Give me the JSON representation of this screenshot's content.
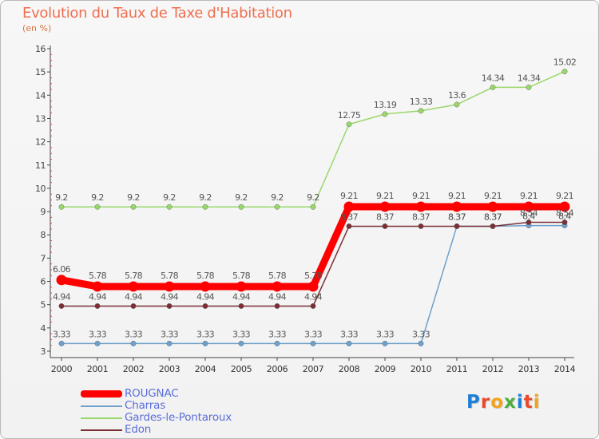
{
  "header": {
    "title": "Evolution du Taux de Taxe d'Habitation",
    "unit": "(en %)"
  },
  "logo": {
    "text": "Proxiti",
    "letter_colors": [
      "#1d7fd6",
      "#e94a2a",
      "#f2a31c",
      "#4cae3c",
      "#1d7fd6",
      "#e94a2a",
      "#f2a31c"
    ]
  },
  "chart_data": {
    "type": "line",
    "title": "Evolution du Taux de Taxe d'Habitation",
    "ylabel": "(en %)",
    "xlabel": "",
    "x": [
      "2000",
      "2001",
      "2002",
      "2003",
      "2004",
      "2005",
      "2006",
      "2007",
      "2008",
      "2009",
      "2010",
      "2011",
      "2012",
      "2013",
      "2014"
    ],
    "ylim": [
      3,
      16
    ],
    "yticks": [
      3,
      4,
      5,
      6,
      7,
      8,
      9,
      10,
      11,
      12,
      13,
      14,
      15,
      16
    ],
    "grid": false,
    "legend_position": "bottom-left",
    "series": [
      {
        "name": "ROUGNAC",
        "color": "#ff0000",
        "emphasis": true,
        "values": [
          6.06,
          5.78,
          5.78,
          5.78,
          5.78,
          5.78,
          5.78,
          5.78,
          9.21,
          9.21,
          9.21,
          9.21,
          9.21,
          9.21,
          9.21
        ],
        "labels": [
          "6.06",
          "5.78",
          "5.78",
          "5.78",
          "5.78",
          "5.78",
          "5.78",
          "5.78",
          "9.21",
          "9.21",
          "9.21",
          "9.21",
          "9.21",
          "9.21",
          "9.21"
        ]
      },
      {
        "name": "Charras",
        "color": "#6fa0cc",
        "values": [
          3.33,
          3.33,
          3.33,
          3.33,
          3.33,
          3.33,
          3.33,
          3.33,
          3.33,
          3.33,
          3.33,
          8.37,
          8.37,
          8.4,
          8.4
        ],
        "labels": [
          "3.33",
          "3.33",
          "3.33",
          "3.33",
          "3.33",
          "3.33",
          "3.33",
          "3.33",
          "3.33",
          "3.33",
          "3.33",
          "8.37",
          "8.37",
          "8.4",
          "8.4"
        ]
      },
      {
        "name": "Gardes-le-Pontaroux",
        "color": "#9ad76b",
        "values": [
          9.2,
          9.2,
          9.2,
          9.2,
          9.2,
          9.2,
          9.2,
          9.2,
          12.75,
          13.19,
          13.33,
          13.6,
          14.34,
          14.34,
          15.02
        ],
        "labels": [
          "9.2",
          "9.2",
          "9.2",
          "9.2",
          "9.2",
          "9.2",
          "9.2",
          "9.2",
          "12.75",
          "13.19",
          "13.33",
          "13.6",
          "14.34",
          "14.34",
          "15.02"
        ]
      },
      {
        "name": "Edon",
        "color": "#7a2f35",
        "values": [
          4.94,
          4.94,
          4.94,
          4.94,
          4.94,
          4.94,
          4.94,
          4.94,
          8.37,
          8.37,
          8.37,
          8.37,
          8.37,
          8.54,
          8.54
        ],
        "labels": [
          "4.94",
          "4.94",
          "4.94",
          "4.94",
          "4.94",
          "4.94",
          "4.94",
          "4.94",
          "8.37",
          "8.37",
          "8.37",
          "8.37",
          "8.37",
          "8.54",
          "8.54"
        ]
      }
    ]
  }
}
